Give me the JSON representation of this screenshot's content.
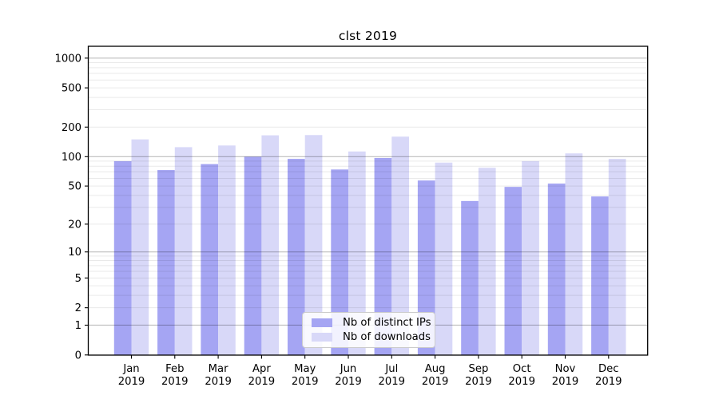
{
  "chart_data": {
    "type": "bar",
    "title": "clst 2019",
    "categories": [
      "Jan",
      "Feb",
      "Mar",
      "Apr",
      "May",
      "Jun",
      "Jul",
      "Aug",
      "Sep",
      "Oct",
      "Nov",
      "Dec"
    ],
    "category_year_label": "2019",
    "series": [
      {
        "name": "Nb of distinct IPs",
        "color": "#a5a5f3",
        "values": [
          90,
          73,
          84,
          100,
          95,
          74,
          97,
          57,
          35,
          49,
          53,
          39
        ]
      },
      {
        "name": "Nb of downloads",
        "color": "#d8d8f8",
        "values": [
          150,
          125,
          130,
          165,
          166,
          113,
          160,
          87,
          77,
          90,
          108,
          95
        ]
      }
    ],
    "yscale": "log1p",
    "ylim": [
      0,
      1100
    ],
    "yticks": [
      0,
      1,
      2,
      5,
      10,
      20,
      50,
      100,
      200,
      500,
      1000
    ],
    "ytick_labels": [
      "0",
      "1",
      "2",
      "5",
      "10",
      "20",
      "50",
      "100",
      "200",
      "500",
      "1000"
    ],
    "major_gridlines": [
      1,
      10,
      100,
      1000
    ],
    "minor_gridlines": [
      2,
      3,
      4,
      5,
      6,
      7,
      8,
      9,
      20,
      30,
      40,
      50,
      60,
      70,
      80,
      90,
      200,
      300,
      400,
      500,
      600,
      700,
      800,
      900
    ],
    "grid": true,
    "legend_position": "bottom-center",
    "xlabel": "",
    "ylabel": ""
  },
  "style_colors": {
    "minor_grid": "rgba(0,0,0,0.085)",
    "major_grid": "rgba(0,0,0,0.26)",
    "axis": "#000000",
    "tick_text": "#000000"
  }
}
